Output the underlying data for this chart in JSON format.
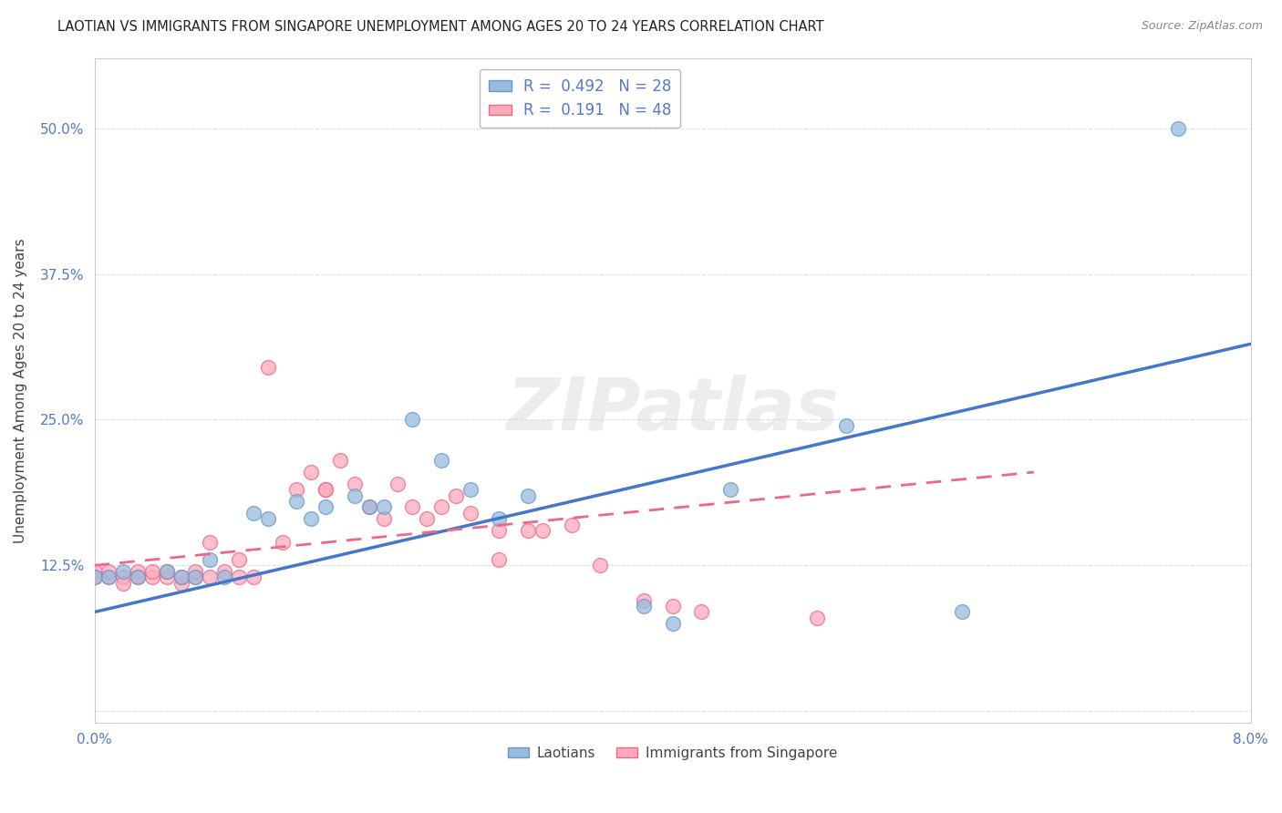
{
  "title": "LAOTIAN VS IMMIGRANTS FROM SINGAPORE UNEMPLOYMENT AMONG AGES 20 TO 24 YEARS CORRELATION CHART",
  "source": "Source: ZipAtlas.com",
  "ylabel": "Unemployment Among Ages 20 to 24 years",
  "xlim": [
    0.0,
    0.08
  ],
  "ylim": [
    -0.01,
    0.56
  ],
  "R1": "0.492",
  "N1": "28",
  "R2": "0.191",
  "N2": "48",
  "blue_x": [
    0.0,
    0.001,
    0.002,
    0.003,
    0.005,
    0.006,
    0.007,
    0.008,
    0.009,
    0.011,
    0.012,
    0.014,
    0.015,
    0.016,
    0.018,
    0.019,
    0.02,
    0.022,
    0.024,
    0.026,
    0.028,
    0.03,
    0.038,
    0.04,
    0.044,
    0.052,
    0.06,
    0.075
  ],
  "blue_y": [
    0.115,
    0.115,
    0.12,
    0.115,
    0.12,
    0.115,
    0.115,
    0.13,
    0.115,
    0.17,
    0.165,
    0.18,
    0.165,
    0.175,
    0.185,
    0.175,
    0.175,
    0.25,
    0.215,
    0.19,
    0.165,
    0.185,
    0.09,
    0.075,
    0.19,
    0.245,
    0.085,
    0.5
  ],
  "pink_x": [
    0.0,
    0.0,
    0.001,
    0.001,
    0.002,
    0.002,
    0.003,
    0.003,
    0.004,
    0.004,
    0.005,
    0.005,
    0.006,
    0.006,
    0.007,
    0.007,
    0.008,
    0.008,
    0.009,
    0.01,
    0.01,
    0.011,
    0.012,
    0.013,
    0.014,
    0.015,
    0.016,
    0.016,
    0.017,
    0.018,
    0.019,
    0.02,
    0.021,
    0.022,
    0.023,
    0.024,
    0.025,
    0.026,
    0.028,
    0.028,
    0.03,
    0.031,
    0.033,
    0.035,
    0.038,
    0.04,
    0.042,
    0.05
  ],
  "pink_y": [
    0.12,
    0.115,
    0.115,
    0.12,
    0.115,
    0.11,
    0.12,
    0.115,
    0.115,
    0.12,
    0.115,
    0.12,
    0.11,
    0.115,
    0.115,
    0.12,
    0.115,
    0.145,
    0.12,
    0.115,
    0.13,
    0.115,
    0.295,
    0.145,
    0.19,
    0.205,
    0.19,
    0.19,
    0.215,
    0.195,
    0.175,
    0.165,
    0.195,
    0.175,
    0.165,
    0.175,
    0.185,
    0.17,
    0.13,
    0.155,
    0.155,
    0.155,
    0.16,
    0.125,
    0.095,
    0.09,
    0.085,
    0.08
  ],
  "blue_line_x": [
    0.0,
    0.08
  ],
  "blue_line_y": [
    0.085,
    0.315
  ],
  "pink_line_x": [
    0.0,
    0.065
  ],
  "pink_line_y": [
    0.125,
    0.205
  ],
  "watermark_text": "ZIPatlas",
  "bg_color": "#ffffff",
  "grid_color": "#e0e0e0",
  "blue_color": "#99bbdd",
  "blue_edge": "#6699cc",
  "pink_color": "#ffaabb",
  "pink_edge": "#ee6688",
  "line_blue": "#4477cc",
  "line_pink": "#ee6688",
  "tick_color": "#5577cc",
  "title_color": "#222222",
  "source_color": "#888888"
}
